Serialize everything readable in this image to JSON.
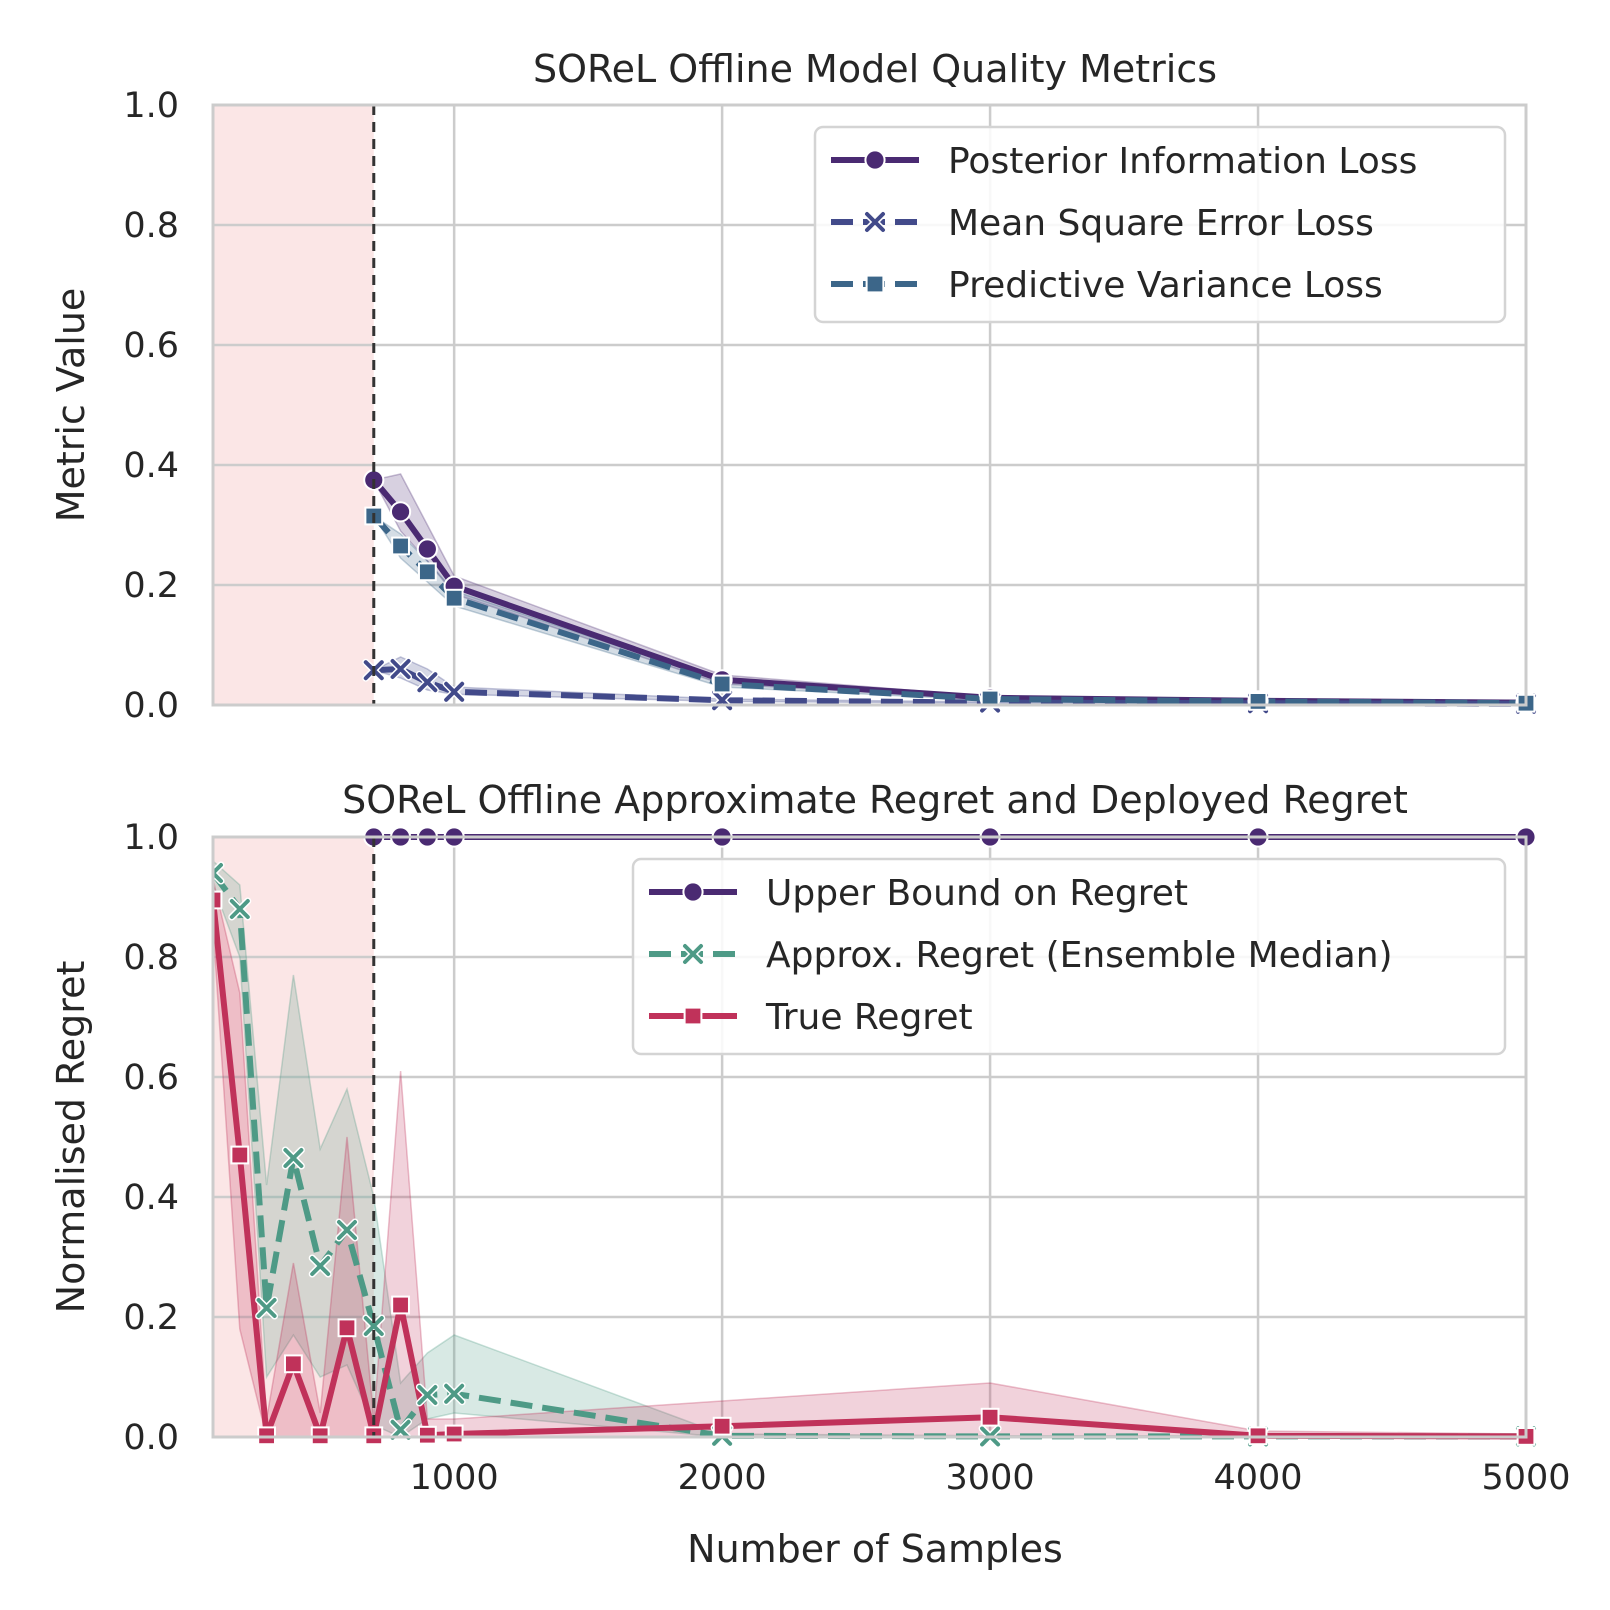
{
  "chart_data": [
    {
      "type": "line",
      "title": "SOReL Offline Model Quality Metrics",
      "xlabel": "",
      "ylabel": "Metric Value",
      "xlim": [
        100,
        5000
      ],
      "ylim": [
        0,
        1.0
      ],
      "yticks": [
        "0.0",
        "0.2",
        "0.4",
        "0.6",
        "0.8",
        "1.0"
      ],
      "xticks": [],
      "grid": true,
      "legend_position": "top-right",
      "shaded_region": {
        "from": 100,
        "to": 700,
        "color": "#fbe6e6"
      },
      "vertical_line": {
        "x": 700,
        "style": "dashed",
        "color": "#333333"
      },
      "series": [
        {
          "name": "Posterior Information Loss",
          "color": "#4a2a72",
          "marker": "circle",
          "linestyle": "solid",
          "x": [
            700,
            800,
            900,
            1000,
            2000,
            3000,
            4000,
            5000
          ],
          "values": [
            0.375,
            0.322,
            0.26,
            0.198,
            0.042,
            0.012,
            0.007,
            0.004
          ],
          "lower": [
            0.375,
            0.29,
            0.24,
            0.185,
            0.035,
            0.01,
            0.006,
            0.003
          ],
          "upper": [
            0.375,
            0.385,
            0.3,
            0.215,
            0.05,
            0.014,
            0.008,
            0.005
          ]
        },
        {
          "name": "Mean Square Error Loss",
          "color": "#424a8a",
          "marker": "x",
          "linestyle": "dashed",
          "x": [
            700,
            800,
            900,
            1000,
            2000,
            3000,
            4000,
            5000
          ],
          "values": [
            0.058,
            0.06,
            0.038,
            0.022,
            0.008,
            0.004,
            0.003,
            0.002
          ],
          "lower": [
            0.058,
            0.045,
            0.025,
            0.018,
            0.006,
            0.003,
            0.002,
            0.001
          ],
          "upper": [
            0.058,
            0.08,
            0.06,
            0.03,
            0.01,
            0.005,
            0.004,
            0.003
          ]
        },
        {
          "name": "Predictive Variance Loss",
          "color": "#3c6689",
          "marker": "square",
          "linestyle": "dashed",
          "x": [
            700,
            800,
            900,
            1000,
            2000,
            3000,
            4000,
            5000
          ],
          "values": [
            0.315,
            0.265,
            0.222,
            0.178,
            0.035,
            0.01,
            0.006,
            0.003
          ],
          "lower": [
            0.315,
            0.245,
            0.205,
            0.165,
            0.03,
            0.008,
            0.005,
            0.002
          ],
          "upper": [
            0.315,
            0.285,
            0.24,
            0.19,
            0.04,
            0.012,
            0.007,
            0.004
          ]
        }
      ]
    },
    {
      "type": "line",
      "title": "SOReL Offline Approximate Regret and Deployed Regret",
      "xlabel": "Number of Samples",
      "ylabel": "Normalised Regret",
      "xlim": [
        100,
        5000
      ],
      "ylim": [
        0,
        1.0
      ],
      "yticks": [
        "0.0",
        "0.2",
        "0.4",
        "0.6",
        "0.8",
        "1.0"
      ],
      "xticks": [
        "1000",
        "2000",
        "3000",
        "4000",
        "5000"
      ],
      "grid": true,
      "legend_position": "top-right",
      "shaded_region": {
        "from": 100,
        "to": 700,
        "color": "#fbe6e6"
      },
      "vertical_line": {
        "x": 700,
        "style": "dashed",
        "color": "#333333"
      },
      "series": [
        {
          "name": "Upper Bound on Regret",
          "color": "#4a2a72",
          "marker": "circle",
          "linestyle": "solid",
          "x": [
            700,
            800,
            900,
            1000,
            2000,
            3000,
            4000,
            5000
          ],
          "values": [
            1.0,
            1.0,
            1.0,
            1.0,
            1.0,
            1.0,
            1.0,
            1.0
          ],
          "lower": [
            1.0,
            1.0,
            1.0,
            1.0,
            1.0,
            1.0,
            1.0,
            1.0
          ],
          "upper": [
            1.0,
            1.0,
            1.0,
            1.0,
            1.0,
            1.0,
            1.0,
            1.0
          ]
        },
        {
          "name": "Approx. Regret (Ensemble Median)",
          "color": "#4e9a86",
          "marker": "x",
          "linestyle": "dashed",
          "x": [
            100,
            200,
            300,
            400,
            500,
            600,
            700,
            800,
            900,
            1000,
            2000,
            3000,
            4000,
            5000
          ],
          "values": [
            0.94,
            0.88,
            0.215,
            0.465,
            0.285,
            0.345,
            0.185,
            0.012,
            0.07,
            0.072,
            0.002,
            0.001,
            0.001,
            0.001
          ],
          "lower": [
            0.92,
            0.8,
            0.1,
            0.17,
            0.1,
            0.12,
            0.02,
            0.0,
            0.03,
            0.04,
            0.0,
            0.0,
            0.0,
            0.0
          ],
          "upper": [
            0.96,
            0.92,
            0.42,
            0.77,
            0.48,
            0.58,
            0.4,
            0.09,
            0.14,
            0.17,
            0.005,
            0.002,
            0.002,
            0.002
          ]
        },
        {
          "name": "True Regret",
          "color": "#c0325a",
          "marker": "square",
          "linestyle": "solid",
          "x": [
            100,
            200,
            300,
            400,
            500,
            600,
            700,
            800,
            900,
            1000,
            2000,
            3000,
            4000,
            5000
          ],
          "values": [
            0.895,
            0.47,
            0.002,
            0.122,
            0.002,
            0.182,
            0.002,
            0.22,
            0.003,
            0.005,
            0.018,
            0.033,
            0.002,
            0.001
          ],
          "lower": [
            0.85,
            0.18,
            0.0,
            0.0,
            0.0,
            0.0,
            0.0,
            0.0,
            0.0,
            0.0,
            0.0,
            0.0,
            0.0,
            0.0
          ],
          "upper": [
            0.93,
            0.74,
            0.03,
            0.29,
            0.04,
            0.5,
            0.03,
            0.61,
            0.03,
            0.03,
            0.06,
            0.09,
            0.01,
            0.005
          ]
        }
      ]
    }
  ]
}
